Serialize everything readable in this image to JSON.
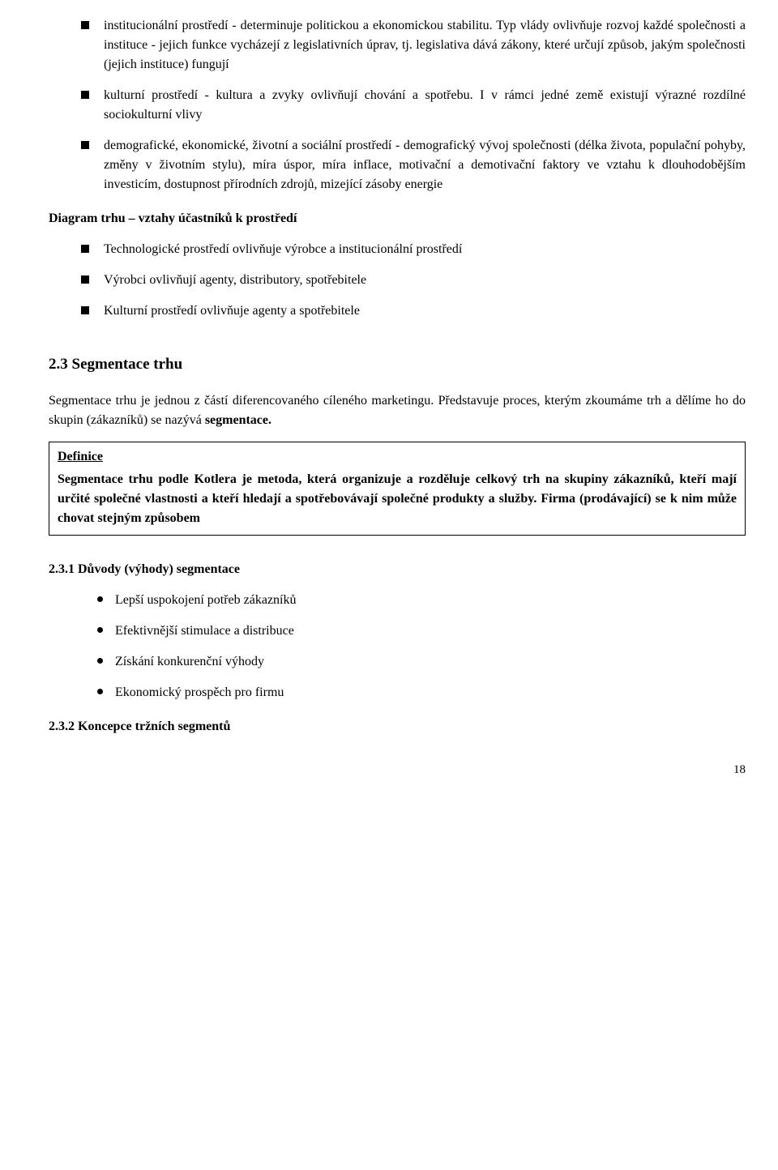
{
  "bullets_top": [
    "institucionální prostředí - determinuje politickou a ekonomickou stabilitu. Typ vlády ovlivňuje rozvoj každé společnosti a instituce - jejich funkce vycházejí z legislativních úprav, tj. legislativa dává zákony, které určují způsob, jakým společnosti (jejich instituce) fungují",
    "kulturní prostředí - kultura a zvyky ovlivňují chování a spotřebu. I v rámci jedné země existují výrazné rozdílné sociokulturní vlivy",
    "demografické, ekonomické, životní a sociální prostředí - demografický vývoj společnosti (délka života, populační pohyby, změny v životním stylu), míra úspor, míra inflace, motivační a demotivační faktory ve vztahu k dlouhodobějším investicím, dostupnost přírodních zdrojů, mizející zásoby energie"
  ],
  "diagram_heading": "Diagram trhu – vztahy účastníků k prostředí",
  "bullets_diagram": [
    "Technologické prostředí ovlivňuje výrobce  a institucionální prostředí",
    "Výrobci ovlivňují agenty, distributory, spotřebitele",
    "Kulturní prostředí ovlivňuje agenty a spotřebitele"
  ],
  "section_2_3": "2.3 Segmentace trhu",
  "intro_paragraph_prefix": "Segmentace trhu je jednou z částí diferencovaného cíleného marketingu. Představuje proces, kterým zkoumáme trh a dělíme ho do skupin (zákazníků) se nazývá ",
  "intro_bold": "segmentace.",
  "definition": {
    "label": "Definice",
    "text": "Segmentace trhu podle Kotlera je metoda, která organizuje a rozděluje celkový trh na skupiny zákazníků, kteří mají určité společné vlastnosti a kteří hledají a spotřebovávají společné produkty a služby. Firma (prodávající) se k nim může chovat stejným způsobem"
  },
  "subsection_2_3_1": "2.3.1 Důvody (výhody) segmentace",
  "bullets_advantages": [
    "Lepší uspokojení potřeb zákazníků",
    "Efektivnější stimulace a distribuce",
    "Získání konkurenční výhody",
    "Ekonomický prospěch pro firmu"
  ],
  "subsection_2_3_2": "2.3.2 Koncepce tržních segmentů",
  "page_number": "18"
}
